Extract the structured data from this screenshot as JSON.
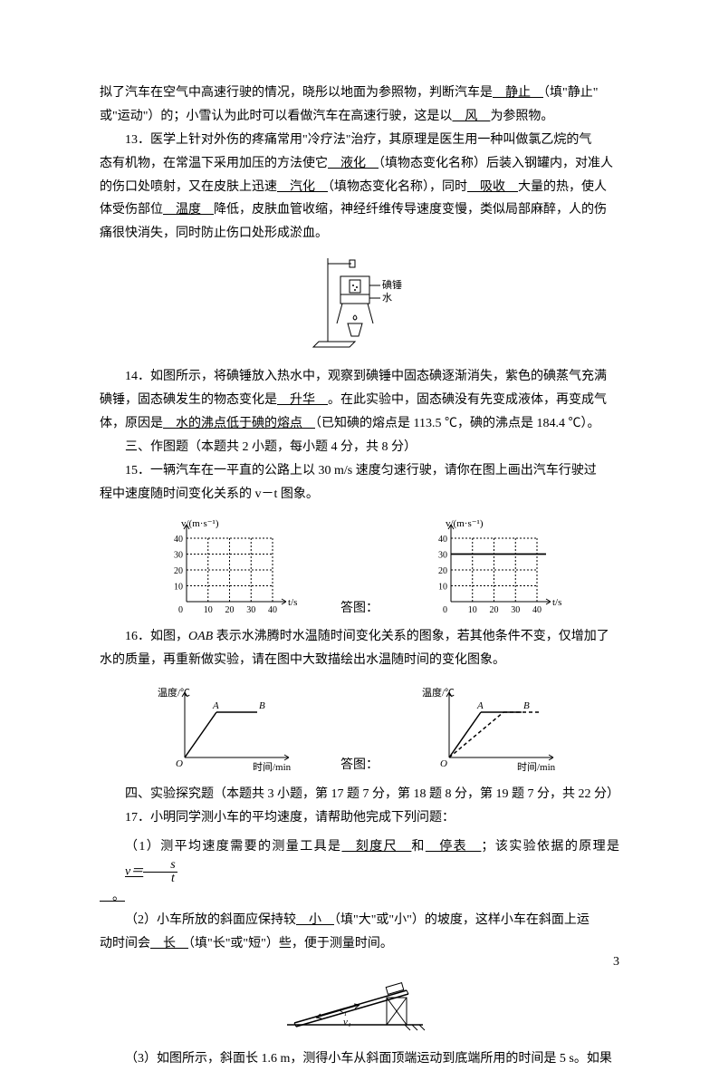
{
  "q12_tail": {
    "line1_a": "拟了汽车在空气中高速行驶的情况，晓彤以地面为参照物，判断汽车是",
    "blank1": "　静止　",
    "line1_b": "（填\"静止\"",
    "line2_a": "或\"运动\"）的；小雪认为此时可以看做汽车在高速行驶，这是以",
    "blank2": "　风　",
    "line2_b": "为参照物。"
  },
  "q13": {
    "l1_a": "13．医学上针对外伤的疼痛常用\"冷疗法\"治疗，其原理是医生用一种叫做氯乙烷的气",
    "l2_a": "态有机物，在常温下采用加压的方法使它",
    "b1": "　液化　",
    "l2_b": "（填物态变化名称）后装入钢罐内，对准人",
    "l3_a": "的伤口处喷射，又在皮肤上迅速",
    "b2": "　汽化　",
    "l3_b": "（填物态变化名称），同时",
    "b3": "　吸收　",
    "l3_c": "大量的热，使人",
    "l4_a": "体受伤部位",
    "b4": "　温度　",
    "l4_b": "降低，皮肤血管收缩，神经纤维传导速度变慢，类似局部麻醉，人的伤",
    "l5": "痛很快消失，同时防止伤口处形成淤血。"
  },
  "dev_fig": {
    "label1": "碘锤",
    "label2": "水"
  },
  "q14": {
    "l1_a": "14．如图所示，将碘锤放入热水中，观察到碘锤中固态碘逐渐消失，紫色的碘蒸气充满",
    "l2_a": "碘锤，固态碘发生的物态变化是",
    "b1": "　升华　",
    "l2_b": "。在此实验中，固态碘没有先变成液体，再变成气",
    "l3_a": "体，原因是",
    "b2": "　水的沸点低于碘的熔点　",
    "l3_b": "（已知碘的熔点是 113.5 ℃，碘的沸点是 184.4 ℃）。"
  },
  "sec3": "三、作图题（本题共 2 小题，每小题 4 分，共 8 分）",
  "q15": {
    "l1": "15．一辆汽车在一平直的公路上以 30 m/s 速度匀速行驶，请你在图上画出汽车行驶过",
    "l2": "程中速度随时间变化关系的 v－t 图象。"
  },
  "chart15": {
    "ylab": "v/(m·s⁻¹)",
    "xlab": "t/s",
    "yticks": [
      10,
      20,
      30,
      40
    ],
    "xticks": [
      10,
      20,
      30,
      40
    ],
    "answer_y": 30,
    "axis_color": "#000",
    "grid_dash": "2,2"
  },
  "between": "答图：",
  "q16": {
    "l1_a": "16．如图，",
    "l1_i": "OAB",
    "l1_b": " 表示水沸腾时水温随时间变化关系的图象，若其他条件不变，仅增加了",
    "l2": "水的质量，再重新做实验，请在图中大致描绘出水温随时间的变化图象。"
  },
  "chart16": {
    "ylab": "温度/℃",
    "xlab": "时间/min",
    "A": "A",
    "B": "B",
    "O": "O"
  },
  "sec4": "四、实验探究题（本题共 3 小题，第 17 题 7 分，第 18 题 8 分，第 19 题 7 分，共 22 分）",
  "q17": {
    "l0": "17．小明同学测小车的平均速度，请帮助他完成下列问题：",
    "p1_a": "（1）测平均速度需要的测量工具是",
    "b1": "　刻度尺　",
    "p1_b": "和",
    "b2": "　停表　",
    "p1_c": "；该实验依据的原理是",
    "b3f": "v＝",
    "b3n": "s",
    "b3d": "t",
    "p1_end": "　。",
    "p2_a": "（2）小车所放的斜面应保持较",
    "b4": "　小　",
    "p2_b": "（填\"大\"或\"小\"）的坡度，这样小车在斜面上运",
    "p2_c": "动时间会",
    "b5": "　长　",
    "p2_d": "（填\"长\"或\"短\"）些，便于测量时间。",
    "p3": "（3）如图所示，斜面长 1.6 m，测得小车从斜面顶端运动到底端所用的时间是 5 s。如果"
  },
  "ramp": {
    "s1": "s₁",
    "v1": "v₁"
  },
  "pagenum": "3"
}
